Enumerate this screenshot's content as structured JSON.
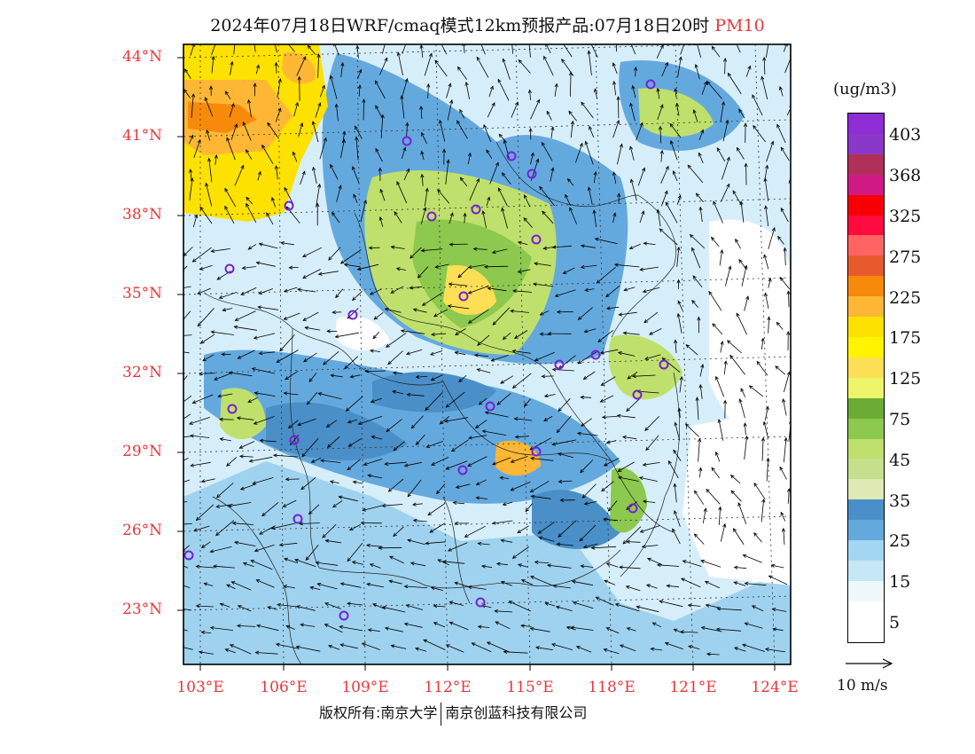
{
  "title": {
    "main": "2024年07月18日WRF/cmaq模式12km预报产品:07月18日20时",
    "species": "PM10"
  },
  "lat_labels": [
    "44°N",
    "41°N",
    "38°N",
    "35°N",
    "32°N",
    "29°N",
    "26°N",
    "23°N"
  ],
  "lon_labels": [
    "103°E",
    "106°E",
    "109°E",
    "112°E",
    "115°E",
    "118°E",
    "121°E",
    "124°E"
  ],
  "legend": {
    "unit": "(ug/m3)",
    "levels": [
      "403",
      "368",
      "325",
      "275",
      "225",
      "175",
      "125",
      "75",
      "45",
      "35",
      "25",
      "15",
      "5"
    ],
    "colors": [
      "#8e2cd6",
      "#8a38c8",
      "#b0305a",
      "#cf1a86",
      "#f70005",
      "#fe0b3f",
      "#ff6462",
      "#e85a2d",
      "#f88a0b",
      "#fdb735",
      "#fde101",
      "#fef400",
      "#fcdf55",
      "#edf66a",
      "#6bac37",
      "#8cc94e",
      "#bfe06c",
      "#c6df8c",
      "#dfeab5",
      "#4a8fc8",
      "#64a9de",
      "#a3d6f3",
      "#c6e7f6",
      "#eef7fc",
      "#ffffff"
    ]
  },
  "wind_ref": "10 m/s",
  "copyright": {
    "left": "版权所有:南京大学",
    "right": "南京创蓝科技有限公司"
  }
}
